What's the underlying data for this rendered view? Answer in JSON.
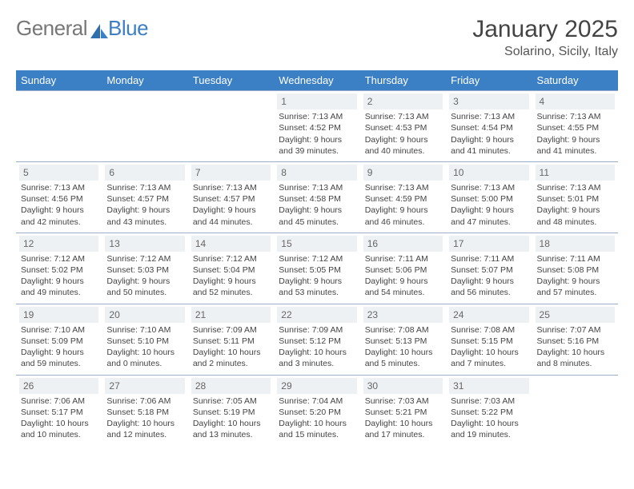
{
  "brand": {
    "part1": "General",
    "part2": "Blue"
  },
  "title": "January 2025",
  "location": "Solarino, Sicily, Italy",
  "colors": {
    "header_bg": "#3b7fc4",
    "header_text": "#ffffff",
    "border": "#9aaecb",
    "daynum_bg": "#eef1f4",
    "text": "#444444",
    "logo_grey": "#777777",
    "logo_blue": "#3b7fc4"
  },
  "day_headers": [
    "Sunday",
    "Monday",
    "Tuesday",
    "Wednesday",
    "Thursday",
    "Friday",
    "Saturday"
  ],
  "weeks": [
    [
      null,
      null,
      null,
      {
        "n": "1",
        "sr": "7:13 AM",
        "ss": "4:52 PM",
        "dl": "9 hours and 39 minutes."
      },
      {
        "n": "2",
        "sr": "7:13 AM",
        "ss": "4:53 PM",
        "dl": "9 hours and 40 minutes."
      },
      {
        "n": "3",
        "sr": "7:13 AM",
        "ss": "4:54 PM",
        "dl": "9 hours and 41 minutes."
      },
      {
        "n": "4",
        "sr": "7:13 AM",
        "ss": "4:55 PM",
        "dl": "9 hours and 41 minutes."
      }
    ],
    [
      {
        "n": "5",
        "sr": "7:13 AM",
        "ss": "4:56 PM",
        "dl": "9 hours and 42 minutes."
      },
      {
        "n": "6",
        "sr": "7:13 AM",
        "ss": "4:57 PM",
        "dl": "9 hours and 43 minutes."
      },
      {
        "n": "7",
        "sr": "7:13 AM",
        "ss": "4:57 PM",
        "dl": "9 hours and 44 minutes."
      },
      {
        "n": "8",
        "sr": "7:13 AM",
        "ss": "4:58 PM",
        "dl": "9 hours and 45 minutes."
      },
      {
        "n": "9",
        "sr": "7:13 AM",
        "ss": "4:59 PM",
        "dl": "9 hours and 46 minutes."
      },
      {
        "n": "10",
        "sr": "7:13 AM",
        "ss": "5:00 PM",
        "dl": "9 hours and 47 minutes."
      },
      {
        "n": "11",
        "sr": "7:13 AM",
        "ss": "5:01 PM",
        "dl": "9 hours and 48 minutes."
      }
    ],
    [
      {
        "n": "12",
        "sr": "7:12 AM",
        "ss": "5:02 PM",
        "dl": "9 hours and 49 minutes."
      },
      {
        "n": "13",
        "sr": "7:12 AM",
        "ss": "5:03 PM",
        "dl": "9 hours and 50 minutes."
      },
      {
        "n": "14",
        "sr": "7:12 AM",
        "ss": "5:04 PM",
        "dl": "9 hours and 52 minutes."
      },
      {
        "n": "15",
        "sr": "7:12 AM",
        "ss": "5:05 PM",
        "dl": "9 hours and 53 minutes."
      },
      {
        "n": "16",
        "sr": "7:11 AM",
        "ss": "5:06 PM",
        "dl": "9 hours and 54 minutes."
      },
      {
        "n": "17",
        "sr": "7:11 AM",
        "ss": "5:07 PM",
        "dl": "9 hours and 56 minutes."
      },
      {
        "n": "18",
        "sr": "7:11 AM",
        "ss": "5:08 PM",
        "dl": "9 hours and 57 minutes."
      }
    ],
    [
      {
        "n": "19",
        "sr": "7:10 AM",
        "ss": "5:09 PM",
        "dl": "9 hours and 59 minutes."
      },
      {
        "n": "20",
        "sr": "7:10 AM",
        "ss": "5:10 PM",
        "dl": "10 hours and 0 minutes."
      },
      {
        "n": "21",
        "sr": "7:09 AM",
        "ss": "5:11 PM",
        "dl": "10 hours and 2 minutes."
      },
      {
        "n": "22",
        "sr": "7:09 AM",
        "ss": "5:12 PM",
        "dl": "10 hours and 3 minutes."
      },
      {
        "n": "23",
        "sr": "7:08 AM",
        "ss": "5:13 PM",
        "dl": "10 hours and 5 minutes."
      },
      {
        "n": "24",
        "sr": "7:08 AM",
        "ss": "5:15 PM",
        "dl": "10 hours and 7 minutes."
      },
      {
        "n": "25",
        "sr": "7:07 AM",
        "ss": "5:16 PM",
        "dl": "10 hours and 8 minutes."
      }
    ],
    [
      {
        "n": "26",
        "sr": "7:06 AM",
        "ss": "5:17 PM",
        "dl": "10 hours and 10 minutes."
      },
      {
        "n": "27",
        "sr": "7:06 AM",
        "ss": "5:18 PM",
        "dl": "10 hours and 12 minutes."
      },
      {
        "n": "28",
        "sr": "7:05 AM",
        "ss": "5:19 PM",
        "dl": "10 hours and 13 minutes."
      },
      {
        "n": "29",
        "sr": "7:04 AM",
        "ss": "5:20 PM",
        "dl": "10 hours and 15 minutes."
      },
      {
        "n": "30",
        "sr": "7:03 AM",
        "ss": "5:21 PM",
        "dl": "10 hours and 17 minutes."
      },
      {
        "n": "31",
        "sr": "7:03 AM",
        "ss": "5:22 PM",
        "dl": "10 hours and 19 minutes."
      },
      null
    ]
  ],
  "labels": {
    "sunrise": "Sunrise:",
    "sunset": "Sunset:",
    "daylight": "Daylight:"
  }
}
